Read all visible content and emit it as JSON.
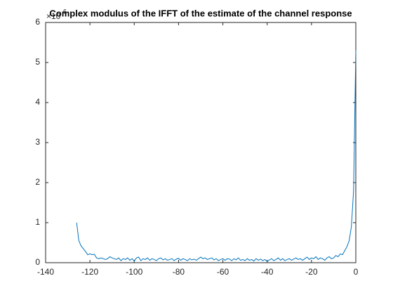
{
  "chart_data": {
    "type": "line",
    "title": "Complex modulus of the IFFT of the estimate of the channel response",
    "y_multiplier_base": "×10",
    "y_multiplier_exponent": "6",
    "x": [
      -126,
      -125,
      -124,
      -123,
      -122,
      -121,
      -120,
      -119,
      -118,
      -117,
      -116,
      -115,
      -114,
      -113,
      -112,
      -111,
      -110,
      -109,
      -108,
      -107,
      -106,
      -105,
      -104,
      -103,
      -102,
      -101,
      -100,
      -99,
      -98,
      -97,
      -96,
      -95,
      -94,
      -93,
      -92,
      -91,
      -90,
      -89,
      -88,
      -87,
      -86,
      -85,
      -84,
      -83,
      -82,
      -81,
      -80,
      -79,
      -78,
      -77,
      -76,
      -75,
      -74,
      -73,
      -72,
      -71,
      -70,
      -69,
      -68,
      -67,
      -66,
      -65,
      -64,
      -63,
      -62,
      -61,
      -60,
      -59,
      -58,
      -57,
      -56,
      -55,
      -54,
      -53,
      -52,
      -51,
      -50,
      -49,
      -48,
      -47,
      -46,
      -45,
      -44,
      -43,
      -42,
      -41,
      -40,
      -39,
      -38,
      -37,
      -36,
      -35,
      -34,
      -33,
      -32,
      -31,
      -30,
      -29,
      -28,
      -27,
      -26,
      -25,
      -24,
      -23,
      -22,
      -21,
      -20,
      -19,
      -18,
      -17,
      -16,
      -15,
      -14,
      -13,
      -12,
      -11,
      -10,
      -9,
      -8,
      -7,
      -6,
      -5,
      -4,
      -3,
      -2,
      -1,
      0
    ],
    "series": [
      {
        "color": "#0072bd",
        "values": [
          1.0,
          0.55,
          0.42,
          0.35,
          0.28,
          0.2,
          0.22,
          0.2,
          0.21,
          0.12,
          0.1,
          0.12,
          0.1,
          0.08,
          0.1,
          0.15,
          0.12,
          0.1,
          0.08,
          0.12,
          0.05,
          0.1,
          0.08,
          0.12,
          0.06,
          0.1,
          0.04,
          0.12,
          0.14,
          0.05,
          0.1,
          0.08,
          0.12,
          0.06,
          0.1,
          0.08,
          0.05,
          0.1,
          0.12,
          0.07,
          0.1,
          0.06,
          0.08,
          0.1,
          0.05,
          0.09,
          0.11,
          0.06,
          0.1,
          0.08,
          0.05,
          0.1,
          0.07,
          0.09,
          0.06,
          0.1,
          0.14,
          0.1,
          0.12,
          0.08,
          0.1,
          0.12,
          0.07,
          0.1,
          0.05,
          0.08,
          0.1,
          0.06,
          0.1,
          0.09,
          0.05,
          0.1,
          0.07,
          0.12,
          0.06,
          0.08,
          0.05,
          0.1,
          0.06,
          0.08,
          0.04,
          0.1,
          0.06,
          0.09,
          0.05,
          0.08,
          0.03,
          0.07,
          0.1,
          0.05,
          0.08,
          0.12,
          0.06,
          0.1,
          0.05,
          0.08,
          0.1,
          0.06,
          0.09,
          0.12,
          0.08,
          0.1,
          0.06,
          0.1,
          0.14,
          0.08,
          0.12,
          0.1,
          0.15,
          0.08,
          0.12,
          0.1,
          0.06,
          0.12,
          0.15,
          0.1,
          0.12,
          0.18,
          0.15,
          0.22,
          0.2,
          0.3,
          0.4,
          0.55,
          0.9,
          1.8,
          5.3
        ]
      }
    ],
    "xlim": [
      -140,
      0
    ],
    "xticks": [
      -140,
      -120,
      -100,
      -80,
      -60,
      -40,
      -20,
      0
    ],
    "ylim": [
      0,
      6
    ],
    "yticks": [
      0,
      1,
      2,
      3,
      4,
      5,
      6
    ]
  }
}
